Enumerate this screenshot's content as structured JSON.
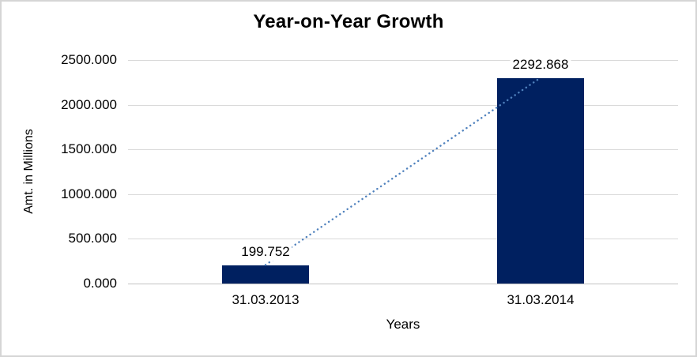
{
  "chart_data": {
    "type": "bar",
    "title": "Year-on-Year Growth",
    "categories": [
      "31.03.2013",
      "31.03.2014"
    ],
    "values": [
      199.752,
      2292.868
    ],
    "value_labels": [
      "199.752",
      "2292.868"
    ],
    "xlabel": "Years",
    "ylabel": "Amt. in Millions",
    "y_ticks": [
      "2500.000",
      "2000.000",
      "1500.000",
      "1000.000",
      "500.000",
      "0.000"
    ],
    "ylim": [
      0,
      2500
    ],
    "y_tick_step": 500,
    "grid": true,
    "legend": "none",
    "trendline": {
      "style": "dotted",
      "connects": [
        "top-of-bar-31.03.2013",
        "top-of-bar-31.03.2014"
      ]
    },
    "colors": {
      "bar": "#002060",
      "trendline": "#4F81BD",
      "gridline": "#D9D9D9",
      "axis_line": "#C3C3C3",
      "text": "#000000",
      "chart_border": "#D5D5D5",
      "background": "#FFFFFF"
    }
  }
}
